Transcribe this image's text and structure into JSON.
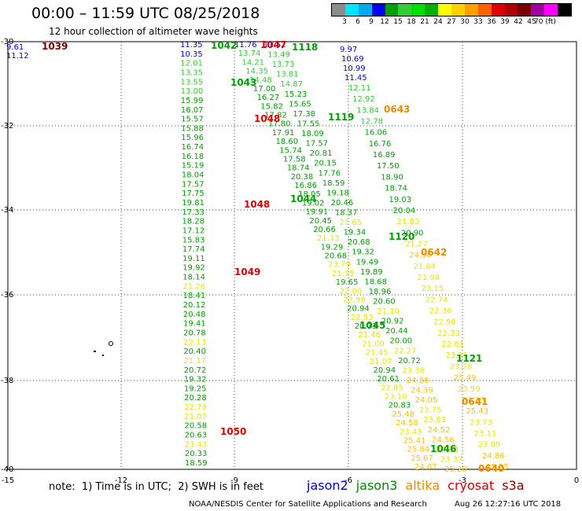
{
  "header": {
    "title": "00:00 – 11:59 UTC 08/25/2018",
    "subtitle": "12 hour collection of altimeter wave heights"
  },
  "legend": {
    "colors": [
      "#8c8c8c",
      "#00e5ff",
      "#00aaee",
      "#0000ee",
      "#00a000",
      "#33cc33",
      "#00e000",
      "#00b000",
      "#ffff00",
      "#ffd000",
      "#ffa000",
      "#ff6000",
      "#e00000",
      "#b00000",
      "#7a0000",
      "#a000a0",
      "#ff00ff",
      "#000000"
    ],
    "labels": [
      "3",
      "6",
      "9",
      "12",
      "15",
      "18",
      "21",
      "24",
      "27",
      "30",
      "33",
      "36",
      "39",
      "42",
      "45",
      "70 (ft)"
    ]
  },
  "map_axes": {
    "lon_ticks": [
      "-15",
      "-12",
      "-9",
      "-6",
      "-3",
      "0"
    ],
    "lat_ticks": [
      "-30",
      "-32",
      "-34",
      "-36",
      "-38",
      "-40"
    ]
  },
  "tracks": {
    "blue_left": [
      "9.61",
      "11.12"
    ],
    "blue_right": [
      "9.97",
      "10.69",
      "10.99",
      "11.45"
    ],
    "brown": [
      "1039"
    ],
    "track1": [
      "11.35",
      "10.35",
      "12.01",
      "13.35",
      "13.55",
      "13.00",
      "15.99",
      "16.07",
      "15.57",
      "15.88",
      "15.96",
      "16.74",
      "16.18",
      "15.19",
      "18.04",
      "17.57",
      "17.75",
      "19.81",
      "17.33",
      "18.28",
      "17.12",
      "15.83",
      "17.74",
      "19.11",
      "19.92",
      "18.14",
      "21.26",
      "18.41",
      "20.12",
      "20.48",
      "19.41",
      "20.78",
      "22.13",
      "20.40",
      "21.17",
      "20.72",
      "19.32",
      "19.25",
      "20.28",
      "22.79",
      "21.07",
      "20.58",
      "20.63",
      "23.43",
      "20.33",
      "18.59"
    ],
    "track2": [
      "11.76",
      "13.74",
      "14.21",
      "14.35",
      "14.48",
      "17.00",
      "16.27",
      "15.82",
      "17.82",
      "17.80",
      "17.91",
      "18.60",
      "15.74",
      "17.58",
      "18.74",
      "20.38",
      "16.86",
      "18.05",
      "19.02",
      "19.91",
      "20.45",
      "20.66",
      "21.13",
      "19.29",
      "20.68",
      "23.79",
      "21.75",
      "19.65",
      "22.00",
      "22.98",
      "20.94",
      "22.53",
      "20.73",
      "21.46",
      "21.00",
      "21.45",
      "21.07",
      "20.94",
      "20.61",
      "22.85",
      "23.10",
      "20.83",
      "25.48",
      "24.58",
      "23.43",
      "25.41",
      "25.84",
      "25.67",
      "24.07"
    ],
    "track3": [
      "11.52",
      "13.49",
      "13.73",
      "13.81",
      "14.87",
      "15.23",
      "15.65",
      "17.38",
      "17.55",
      "18.09",
      "17.57",
      "20.81",
      "20.15",
      "17.76",
      "18.59",
      "19.18",
      "20.46",
      "18.37",
      "21.65",
      "19.34",
      "20.68",
      "19.32",
      "19.49",
      "19.89",
      "18.68",
      "18.96",
      "20.60",
      "21.10",
      "20.92",
      "20.44",
      "20.00",
      "22.27",
      "20.72",
      "23.38",
      "24.36",
      "24.39",
      "24.05",
      "23.75",
      "23.83",
      "24.52",
      "24.56",
      "24.38",
      "23.37",
      "25.28"
    ],
    "track4": [
      "12.11",
      "12.92",
      "13.84",
      "12.78",
      "16.06",
      "16.76",
      "16.89",
      "17.50",
      "18.90",
      "18.74",
      "19.03",
      "20.04",
      "21.83",
      "20.90",
      "21.27",
      "24.56",
      "21.84",
      "21.98",
      "23.15",
      "22.74",
      "22.36",
      "22.98",
      "22.33",
      "22.81",
      "23.21",
      "23.28",
      "25.49",
      "23.59",
      "23.16",
      "25.43",
      "23.73",
      "23.11",
      "23.09",
      "24.86",
      "25.25"
    ],
    "pass_labels": [
      {
        "text": "1042",
        "c": "#00a000"
      },
      {
        "text": "1047",
        "c": "#e00000"
      },
      {
        "text": "1118",
        "c": "#00a000"
      },
      {
        "text": "1043",
        "c": "#00a000"
      },
      {
        "text": "0643",
        "c": "#ee8800"
      },
      {
        "text": "1048",
        "c": "#e00000"
      },
      {
        "text": "1119",
        "c": "#00a000"
      },
      {
        "text": "1044",
        "c": "#00a000"
      },
      {
        "text": "1048",
        "c": "#e00000"
      },
      {
        "text": "1120",
        "c": "#00a000"
      },
      {
        "text": "0642",
        "c": "#ee8800"
      },
      {
        "text": "1049",
        "c": "#e00000"
      },
      {
        "text": "1045",
        "c": "#00a000"
      },
      {
        "text": "1121",
        "c": "#00a000"
      },
      {
        "text": "0641",
        "c": "#ee8800"
      },
      {
        "text": "1050",
        "c": "#e00000"
      },
      {
        "text": "1046",
        "c": "#00a000"
      },
      {
        "text": "0640",
        "c": "#ee8800"
      }
    ]
  },
  "note": {
    "text": "note:  1) Time is in UTC;  2) SWH is in feet",
    "satellites": [
      {
        "name": "jason2",
        "color": "#0000cc"
      },
      {
        "name": "jason3",
        "color": "#008800"
      },
      {
        "name": "altika",
        "color": "#ee8800"
      },
      {
        "name": "cryosat",
        "color": "#dd0000"
      },
      {
        "name": "s3a",
        "color": "#880000"
      }
    ]
  },
  "footer": {
    "left": "NOAA/NESDIS Center for Satellite Applications and Research",
    "right": "Aug 26 12:27:16 UTC 2018"
  }
}
